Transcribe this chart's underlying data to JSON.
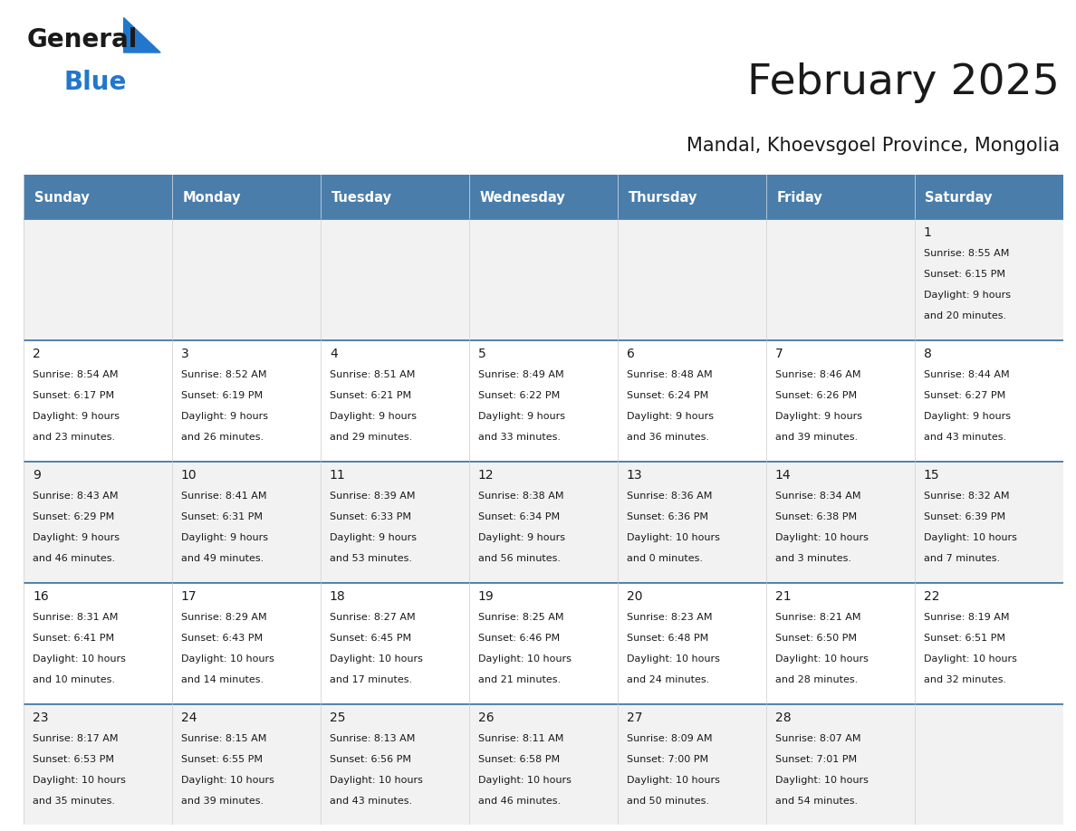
{
  "title": "February 2025",
  "subtitle": "Mandal, Khoevsgoel Province, Mongolia",
  "header_bg": "#4a7daa",
  "header_text_color": "#ffffff",
  "header_font_size": 10.5,
  "days_of_week": [
    "Sunday",
    "Monday",
    "Tuesday",
    "Wednesday",
    "Thursday",
    "Friday",
    "Saturday"
  ],
  "title_font_size": 34,
  "subtitle_font_size": 15,
  "cell_font_size": 8.0,
  "day_num_font_size": 10,
  "logo_general_color": "#1a1a1a",
  "logo_blue_color": "#2277cc",
  "row_bg_colors": [
    "#f2f2f2",
    "#ffffff",
    "#f2f2f2",
    "#ffffff",
    "#f2f2f2"
  ],
  "border_color": "#4a7daa",
  "cell_border_color": "#cccccc",
  "calendar_data": [
    [
      null,
      null,
      null,
      null,
      null,
      null,
      {
        "day": 1,
        "sunrise": "8:55 AM",
        "sunset": "6:15 PM",
        "daylight_h": "9 hours",
        "daylight_m": "and 20 minutes."
      }
    ],
    [
      {
        "day": 2,
        "sunrise": "8:54 AM",
        "sunset": "6:17 PM",
        "daylight_h": "9 hours",
        "daylight_m": "and 23 minutes."
      },
      {
        "day": 3,
        "sunrise": "8:52 AM",
        "sunset": "6:19 PM",
        "daylight_h": "9 hours",
        "daylight_m": "and 26 minutes."
      },
      {
        "day": 4,
        "sunrise": "8:51 AM",
        "sunset": "6:21 PM",
        "daylight_h": "9 hours",
        "daylight_m": "and 29 minutes."
      },
      {
        "day": 5,
        "sunrise": "8:49 AM",
        "sunset": "6:22 PM",
        "daylight_h": "9 hours",
        "daylight_m": "and 33 minutes."
      },
      {
        "day": 6,
        "sunrise": "8:48 AM",
        "sunset": "6:24 PM",
        "daylight_h": "9 hours",
        "daylight_m": "and 36 minutes."
      },
      {
        "day": 7,
        "sunrise": "8:46 AM",
        "sunset": "6:26 PM",
        "daylight_h": "9 hours",
        "daylight_m": "and 39 minutes."
      },
      {
        "day": 8,
        "sunrise": "8:44 AM",
        "sunset": "6:27 PM",
        "daylight_h": "9 hours",
        "daylight_m": "and 43 minutes."
      }
    ],
    [
      {
        "day": 9,
        "sunrise": "8:43 AM",
        "sunset": "6:29 PM",
        "daylight_h": "9 hours",
        "daylight_m": "and 46 minutes."
      },
      {
        "day": 10,
        "sunrise": "8:41 AM",
        "sunset": "6:31 PM",
        "daylight_h": "9 hours",
        "daylight_m": "and 49 minutes."
      },
      {
        "day": 11,
        "sunrise": "8:39 AM",
        "sunset": "6:33 PM",
        "daylight_h": "9 hours",
        "daylight_m": "and 53 minutes."
      },
      {
        "day": 12,
        "sunrise": "8:38 AM",
        "sunset": "6:34 PM",
        "daylight_h": "9 hours",
        "daylight_m": "and 56 minutes."
      },
      {
        "day": 13,
        "sunrise": "8:36 AM",
        "sunset": "6:36 PM",
        "daylight_h": "10 hours",
        "daylight_m": "and 0 minutes."
      },
      {
        "day": 14,
        "sunrise": "8:34 AM",
        "sunset": "6:38 PM",
        "daylight_h": "10 hours",
        "daylight_m": "and 3 minutes."
      },
      {
        "day": 15,
        "sunrise": "8:32 AM",
        "sunset": "6:39 PM",
        "daylight_h": "10 hours",
        "daylight_m": "and 7 minutes."
      }
    ],
    [
      {
        "day": 16,
        "sunrise": "8:31 AM",
        "sunset": "6:41 PM",
        "daylight_h": "10 hours",
        "daylight_m": "and 10 minutes."
      },
      {
        "day": 17,
        "sunrise": "8:29 AM",
        "sunset": "6:43 PM",
        "daylight_h": "10 hours",
        "daylight_m": "and 14 minutes."
      },
      {
        "day": 18,
        "sunrise": "8:27 AM",
        "sunset": "6:45 PM",
        "daylight_h": "10 hours",
        "daylight_m": "and 17 minutes."
      },
      {
        "day": 19,
        "sunrise": "8:25 AM",
        "sunset": "6:46 PM",
        "daylight_h": "10 hours",
        "daylight_m": "and 21 minutes."
      },
      {
        "day": 20,
        "sunrise": "8:23 AM",
        "sunset": "6:48 PM",
        "daylight_h": "10 hours",
        "daylight_m": "and 24 minutes."
      },
      {
        "day": 21,
        "sunrise": "8:21 AM",
        "sunset": "6:50 PM",
        "daylight_h": "10 hours",
        "daylight_m": "and 28 minutes."
      },
      {
        "day": 22,
        "sunrise": "8:19 AM",
        "sunset": "6:51 PM",
        "daylight_h": "10 hours",
        "daylight_m": "and 32 minutes."
      }
    ],
    [
      {
        "day": 23,
        "sunrise": "8:17 AM",
        "sunset": "6:53 PM",
        "daylight_h": "10 hours",
        "daylight_m": "and 35 minutes."
      },
      {
        "day": 24,
        "sunrise": "8:15 AM",
        "sunset": "6:55 PM",
        "daylight_h": "10 hours",
        "daylight_m": "and 39 minutes."
      },
      {
        "day": 25,
        "sunrise": "8:13 AM",
        "sunset": "6:56 PM",
        "daylight_h": "10 hours",
        "daylight_m": "and 43 minutes."
      },
      {
        "day": 26,
        "sunrise": "8:11 AM",
        "sunset": "6:58 PM",
        "daylight_h": "10 hours",
        "daylight_m": "and 46 minutes."
      },
      {
        "day": 27,
        "sunrise": "8:09 AM",
        "sunset": "7:00 PM",
        "daylight_h": "10 hours",
        "daylight_m": "and 50 minutes."
      },
      {
        "day": 28,
        "sunrise": "8:07 AM",
        "sunset": "7:01 PM",
        "daylight_h": "10 hours",
        "daylight_m": "and 54 minutes."
      },
      null
    ]
  ]
}
